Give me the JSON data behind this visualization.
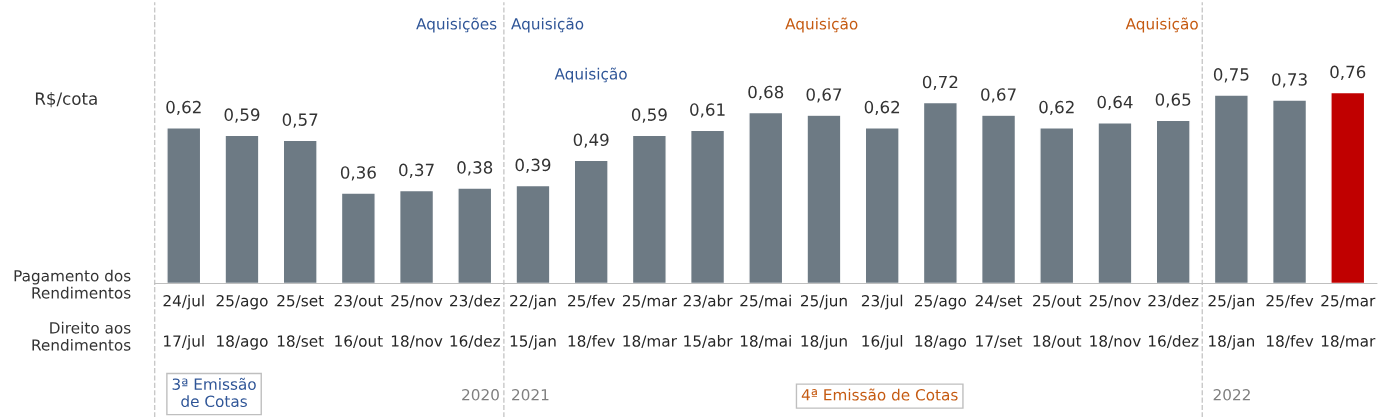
{
  "chart_data": {
    "type": "bar",
    "ylabel": "R$/cota",
    "categories": [
      "24/jul\n17/jul",
      "25/ago\n18/ago",
      "25/set\n18/set",
      "23/out\n16/out",
      "25/nov\n18/nov",
      "23/dez\n16/dez",
      "22/jan\n15/jan",
      "25/fev\n18/fev",
      "25/mar\n18/mar",
      "23/abr\n15/abr",
      "25/mai\n18/mai",
      "25/jun\n18/jun",
      "23/jul\n16/jul",
      "25/ago\n18/ago",
      "24/set\n17/set",
      "25/out\n18/out",
      "25/nov\n18/nov",
      "23/dez\n16/dez",
      "25/jan\n18/jan",
      "25/fev\n18/fev",
      "25/mar\n18/mar"
    ],
    "values": [
      0.62,
      0.59,
      0.57,
      0.36,
      0.37,
      0.38,
      0.39,
      0.49,
      0.59,
      0.61,
      0.68,
      0.67,
      0.62,
      0.72,
      0.67,
      0.62,
      0.64,
      0.65,
      0.75,
      0.73,
      0.76
    ],
    "value_labels": [
      "0,62",
      "0,59",
      "0,57",
      "0,36",
      "0,37",
      "0,38",
      "0,39",
      "0,49",
      "0,59",
      "0,61",
      "0,68",
      "0,67",
      "0,62",
      "0,72",
      "0,67",
      "0,62",
      "0,64",
      "0,65",
      "0,75",
      "0,73",
      "0,76"
    ],
    "colors": [
      "#6d7a84",
      "#6d7a84",
      "#6d7a84",
      "#6d7a84",
      "#6d7a84",
      "#6d7a84",
      "#6d7a84",
      "#6d7a84",
      "#6d7a84",
      "#6d7a84",
      "#6d7a84",
      "#6d7a84",
      "#6d7a84",
      "#6d7a84",
      "#6d7a84",
      "#6d7a84",
      "#6d7a84",
      "#6d7a84",
      "#6d7a84",
      "#6d7a84",
      "#c00000"
    ],
    "annotations": [
      "Aquisições",
      "Aquisição",
      "Aquisição",
      "Aquisição",
      "Aquisição",
      "Pagamento dos\nRendimentos",
      "Direito aos\nRendimentos",
      "2020",
      "2021",
      "2022",
      "3ª Emissão\nde Cotas",
      "4ª Emissão de Cotas"
    ],
    "grid": false,
    "legend": false
  }
}
